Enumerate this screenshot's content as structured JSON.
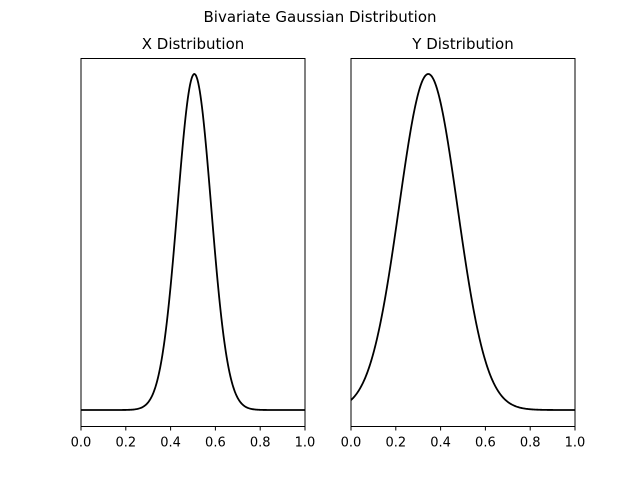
{
  "figure": {
    "title": "Bivariate Gaussian Distribution"
  },
  "chart_data": [
    {
      "type": "line",
      "title": "X Distribution",
      "xlabel": "",
      "ylabel": "",
      "xlim": [
        0.0,
        1.0
      ],
      "xticks": [
        "0.0",
        "0.2",
        "0.4",
        "0.6",
        "0.8",
        "1.0"
      ],
      "yticks_shown": false,
      "grid": false,
      "curve": {
        "shape": "gaussian",
        "mean": 0.506,
        "std": 0.075
      },
      "x": [
        0.0,
        0.1,
        0.2,
        0.25,
        0.3,
        0.35,
        0.4,
        0.45,
        0.5,
        0.506,
        0.55,
        0.6,
        0.65,
        0.7,
        0.75,
        0.8,
        0.9,
        1.0
      ],
      "y": [
        0.0,
        0.0,
        0.0,
        0.003,
        0.023,
        0.11,
        0.37,
        0.76,
        1.0,
        1.0,
        0.84,
        0.46,
        0.16,
        0.035,
        0.005,
        0.0,
        0.0,
        0.0
      ],
      "color": "#000000"
    },
    {
      "type": "line",
      "title": "Y Distribution",
      "xlabel": "",
      "ylabel": "",
      "xlim": [
        0.0,
        1.0
      ],
      "xticks": [
        "0.0",
        "0.2",
        "0.4",
        "0.6",
        "0.8",
        "1.0"
      ],
      "yticks_shown": false,
      "grid": false,
      "curve": {
        "shape": "gaussian",
        "mean": 0.345,
        "std": 0.13
      },
      "x": [
        0.0,
        0.1,
        0.2,
        0.25,
        0.3,
        0.345,
        0.4,
        0.45,
        0.5,
        0.55,
        0.6,
        0.7,
        0.8,
        0.9,
        1.0
      ],
      "y": [
        0.04,
        0.18,
        0.53,
        0.77,
        0.94,
        1.0,
        0.91,
        0.72,
        0.49,
        0.28,
        0.14,
        0.02,
        0.002,
        0.0,
        0.0
      ],
      "color": "#000000"
    }
  ]
}
